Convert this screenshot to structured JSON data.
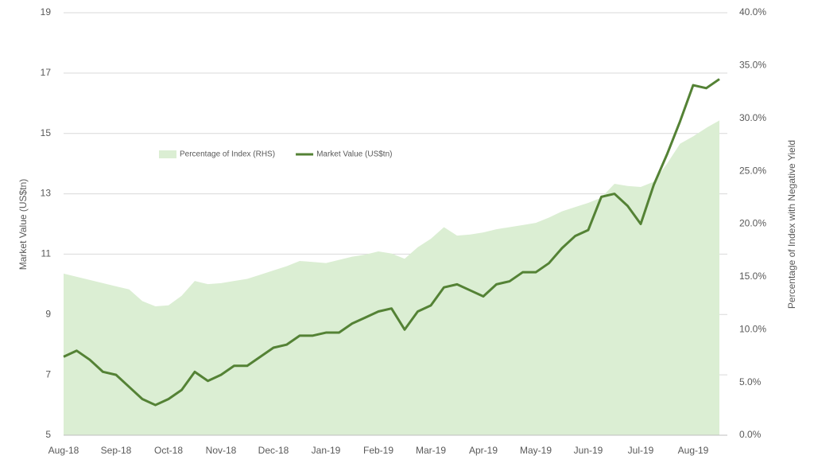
{
  "chart_data": {
    "type": "line-area",
    "categories": [
      "Aug-18",
      null,
      null,
      null,
      "Sep-18",
      null,
      null,
      null,
      "Oct-18",
      null,
      null,
      null,
      "Nov-18",
      null,
      null,
      null,
      "Dec-18",
      null,
      null,
      null,
      "Jan-19",
      null,
      null,
      null,
      "Feb-19",
      null,
      null,
      null,
      "Mar-19",
      null,
      null,
      null,
      "Apr-19",
      null,
      null,
      null,
      "May-19",
      null,
      null,
      null,
      "Jun-19",
      null,
      null,
      null,
      "Jul-19",
      null,
      null,
      null,
      "Aug-19",
      null,
      null
    ],
    "series": [
      {
        "name": "Percentage of Index (RHS)",
        "color": "#dbeed3",
        "axis": "y2",
        "values": [
          15.3,
          15.0,
          14.7,
          14.4,
          14.1,
          13.8,
          12.7,
          12.2,
          12.3,
          13.2,
          14.6,
          14.3,
          14.4,
          14.6,
          14.8,
          15.2,
          15.6,
          16.0,
          16.5,
          16.4,
          16.3,
          16.6,
          16.9,
          17.1,
          17.4,
          17.2,
          16.7,
          17.8,
          18.6,
          19.7,
          18.9,
          19.0,
          19.2,
          19.5,
          19.7,
          19.9,
          20.1,
          20.6,
          21.2,
          21.6,
          22.0,
          22.5,
          23.8,
          23.6,
          23.5,
          24.0,
          25.7,
          27.6,
          28.3,
          29.1,
          29.8
        ]
      },
      {
        "name": "Market Value (US$tn)",
        "color": "#548235",
        "axis": "y",
        "values": [
          7.6,
          7.8,
          7.5,
          7.1,
          7.0,
          6.6,
          6.2,
          6.0,
          6.2,
          6.5,
          7.1,
          6.8,
          7.0,
          7.3,
          7.3,
          7.6,
          7.9,
          8.0,
          8.3,
          8.3,
          8.4,
          8.4,
          8.7,
          8.9,
          9.1,
          9.2,
          8.5,
          9.1,
          9.3,
          9.9,
          10.0,
          9.8,
          9.6,
          10.0,
          10.1,
          10.4,
          10.4,
          10.7,
          11.2,
          11.6,
          11.8,
          12.9,
          13.0,
          12.6,
          12.0,
          13.3,
          14.3,
          15.4,
          16.6,
          16.5,
          16.8
        ]
      }
    ],
    "y_label": "Market Value (US$tn)",
    "y2_label": "Percentage of Index with Negative Yield",
    "ylim": [
      5,
      19
    ],
    "yticks": [
      5,
      7,
      9,
      11,
      13,
      15,
      17,
      19
    ],
    "y2lim": [
      0,
      40
    ],
    "y2ticks": [
      {
        "value": 0,
        "label": "0.0%"
      },
      {
        "value": 5,
        "label": "5.0%"
      },
      {
        "value": 10,
        "label": "10.0%"
      },
      {
        "value": 15,
        "label": "15.0%"
      },
      {
        "value": 20,
        "label": "20.0%"
      },
      {
        "value": 25,
        "label": "25.0%"
      },
      {
        "value": 30,
        "label": "30.0%"
      },
      {
        "value": 35,
        "label": "35.0%"
      },
      {
        "value": 40,
        "label": "40.0%"
      }
    ],
    "grid": true,
    "legend": "center-left"
  }
}
